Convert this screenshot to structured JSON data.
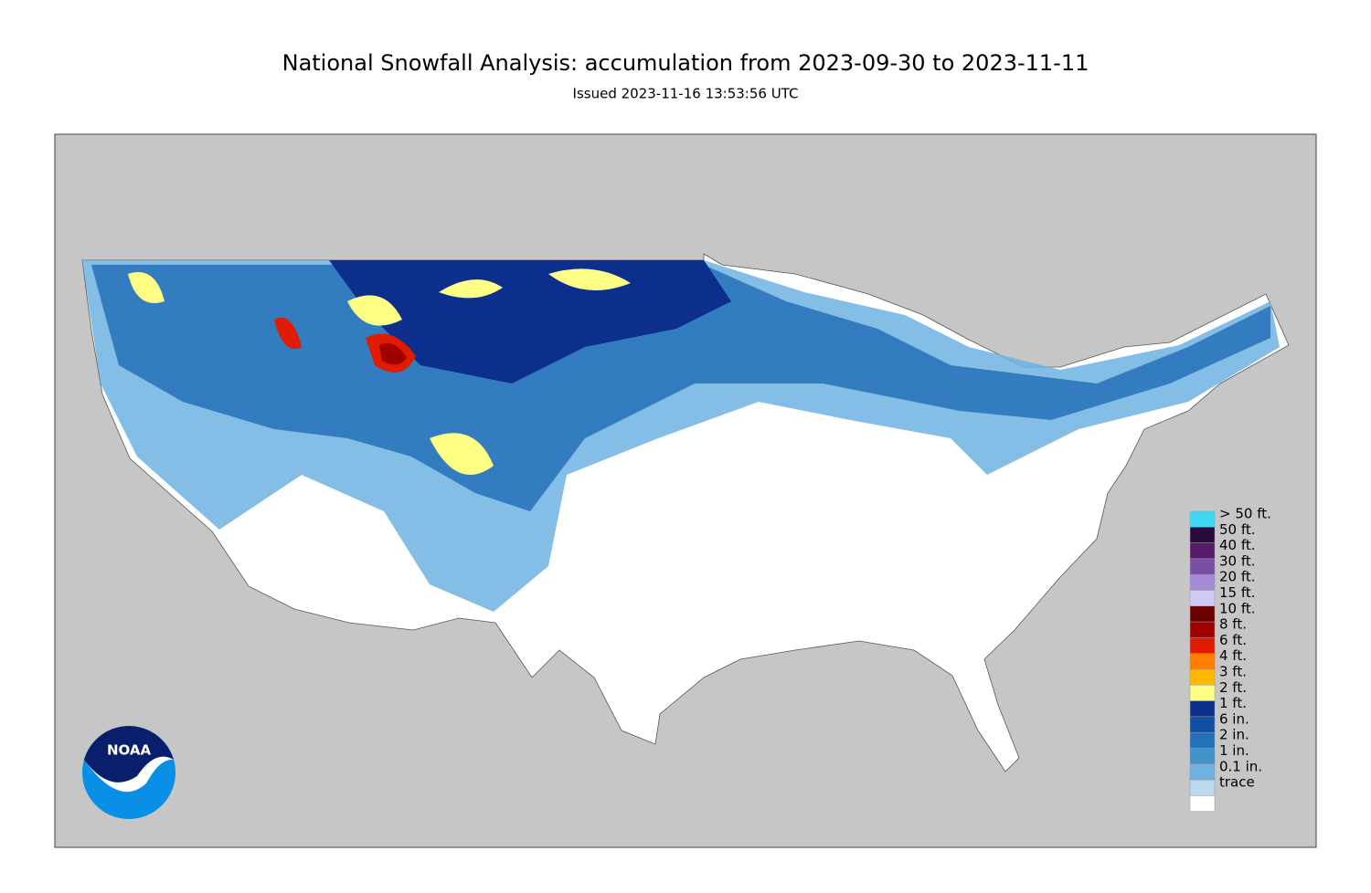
{
  "header": {
    "title": "National Snowfall Analysis: accumulation from 2023-09-30 to 2023-11-11",
    "subtitle": "Issued 2023-11-16 13:53:56 UTC"
  },
  "legend": {
    "items": [
      {
        "label": "> 50 ft.",
        "color": "#40d9f5"
      },
      {
        "label": "50 ft.",
        "color": "#2a0a3c"
      },
      {
        "label": "40 ft.",
        "color": "#561a6b"
      },
      {
        "label": "30 ft.",
        "color": "#7b4fa6"
      },
      {
        "label": "20 ft.",
        "color": "#a58ad8"
      },
      {
        "label": "15 ft.",
        "color": "#d0c8f5"
      },
      {
        "label": "10 ft.",
        "color": "#6a0000"
      },
      {
        "label": "8 ft.",
        "color": "#a10000"
      },
      {
        "label": "6 ft.",
        "color": "#e01b00"
      },
      {
        "label": "4 ft.",
        "color": "#ff7f00"
      },
      {
        "label": "3 ft.",
        "color": "#ffb700"
      },
      {
        "label": "2 ft.",
        "color": "#ffff85"
      },
      {
        "label": "1 ft.",
        "color": "#0c2e8c"
      },
      {
        "label": "6 in.",
        "color": "#0e4fa3"
      },
      {
        "label": "2 in.",
        "color": "#2371b9"
      },
      {
        "label": "1 in.",
        "color": "#4292cc"
      },
      {
        "label": "0.1 in.",
        "color": "#6fb1e0"
      },
      {
        "label": "trace",
        "color": "#bcd8ee"
      }
    ]
  },
  "logo": {
    "text": "NOAA"
  }
}
